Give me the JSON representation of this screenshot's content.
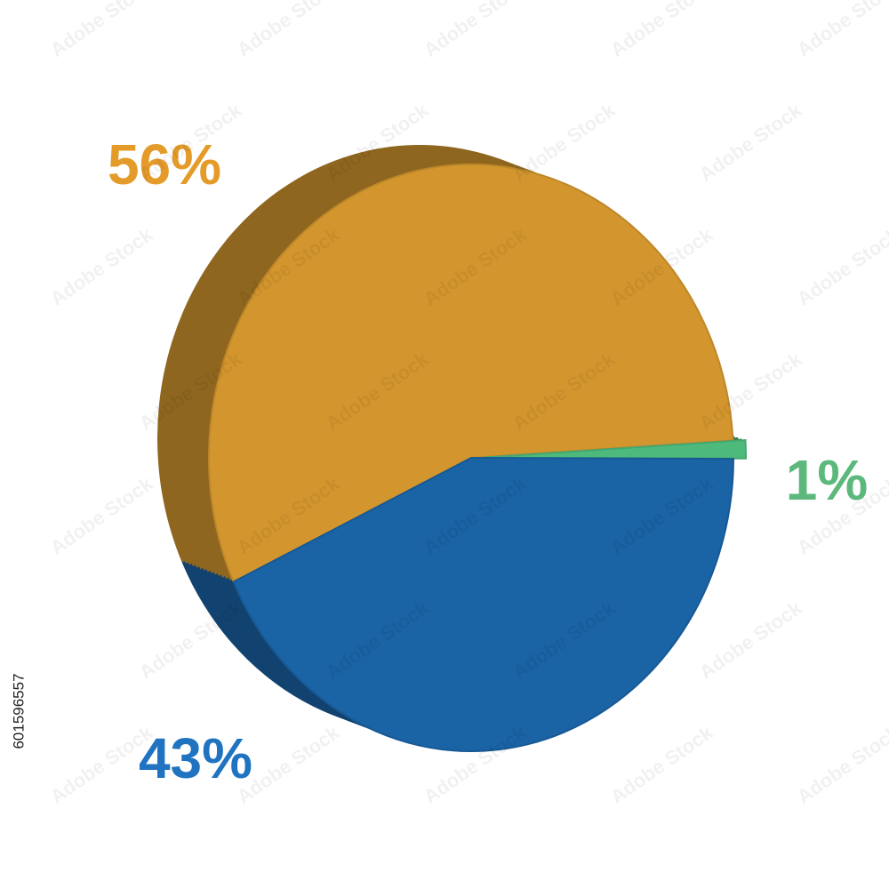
{
  "chart_data": {
    "type": "pie",
    "values": [
      56,
      1,
      43
    ],
    "value_labels": [
      "56%",
      "1%",
      "43%"
    ],
    "colors": [
      "#d3962e",
      "#4dba7c",
      "#1a63a5"
    ],
    "label_colors": [
      "#e49b2a",
      "#5cb87c",
      "#1f73c1"
    ]
  },
  "watermark": "Adobe Stock",
  "image_id": "601596557"
}
